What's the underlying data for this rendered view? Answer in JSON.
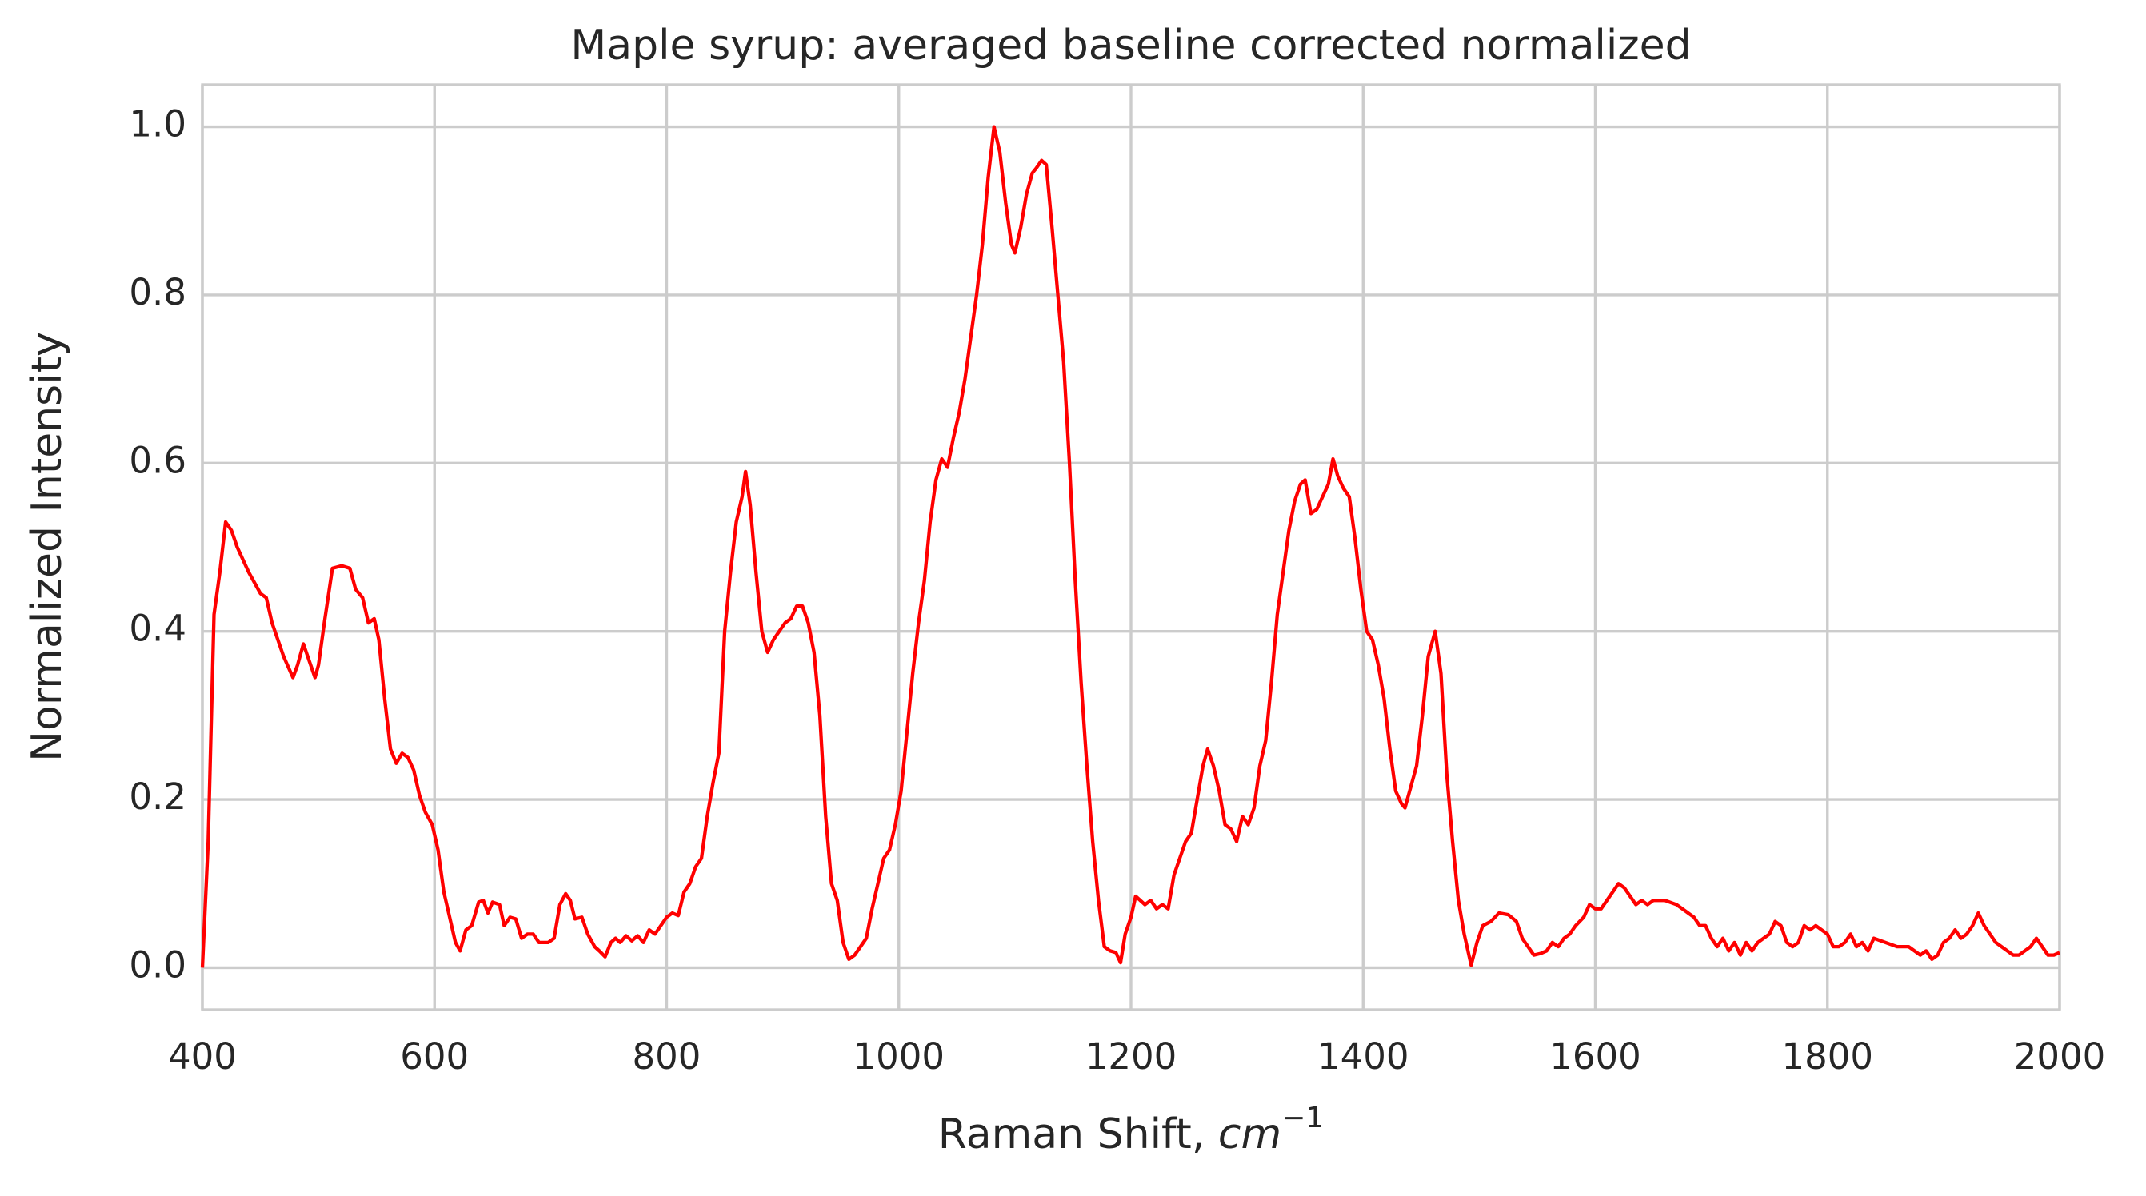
{
  "chart_data": {
    "type": "line",
    "title": "Maple syrup: averaged baseline corrected normalized",
    "xlabel": {
      "text": "Raman Shift,",
      "unit": "cm",
      "unit_exponent": "−1"
    },
    "ylabel": "Normalized Intensity",
    "color": "#ff0000",
    "grid": true,
    "xlim": [
      400,
      2000
    ],
    "ylim": [
      -0.05,
      1.05
    ],
    "xticks": [
      400,
      600,
      800,
      1000,
      1200,
      1400,
      1600,
      1800,
      2000
    ],
    "yticks": [
      {
        "value": 0,
        "label": "0.0"
      },
      0.2,
      0.4,
      0.6,
      0.8,
      {
        "value": 1,
        "label": "1.0"
      }
    ],
    "x": [
      400,
      405,
      410,
      415,
      420,
      425,
      430,
      440,
      450,
      455,
      460,
      465,
      470,
      478,
      482,
      487,
      492,
      497,
      500,
      505,
      512,
      520,
      527,
      532,
      538,
      543,
      548,
      552,
      557,
      562,
      567,
      572,
      577,
      582,
      587,
      592,
      598,
      603,
      608,
      613,
      618,
      622,
      627,
      632,
      638,
      642,
      646,
      650,
      656,
      660,
      665,
      670,
      675,
      680,
      685,
      690,
      698,
      703,
      708,
      713,
      717,
      721,
      727,
      732,
      738,
      742,
      747,
      752,
      756,
      760,
      765,
      770,
      775,
      780,
      785,
      790,
      795,
      800,
      805,
      810,
      815,
      820,
      825,
      830,
      835,
      840,
      845,
      850,
      855,
      860,
      865,
      868,
      872,
      877,
      882,
      887,
      892,
      897,
      902,
      907,
      912,
      917,
      922,
      927,
      932,
      937,
      942,
      947,
      952,
      957,
      962,
      967,
      972,
      977,
      982,
      987,
      992,
      997,
      1002,
      1007,
      1012,
      1017,
      1022,
      1027,
      1032,
      1037,
      1042,
      1047,
      1052,
      1057,
      1062,
      1067,
      1072,
      1077,
      1082,
      1087,
      1092,
      1097,
      1100,
      1105,
      1110,
      1115,
      1118,
      1123,
      1127,
      1132,
      1137,
      1142,
      1147,
      1152,
      1157,
      1162,
      1167,
      1172,
      1177,
      1182,
      1187,
      1191,
      1195,
      1200,
      1204,
      1208,
      1212,
      1217,
      1222,
      1227,
      1232,
      1237,
      1242,
      1247,
      1252,
      1257,
      1262,
      1266,
      1271,
      1276,
      1281,
      1286,
      1291,
      1296,
      1301,
      1306,
      1311,
      1316,
      1321,
      1326,
      1331,
      1336,
      1341,
      1346,
      1350,
      1355,
      1360,
      1365,
      1370,
      1374,
      1378,
      1383,
      1388,
      1393,
      1398,
      1403,
      1408,
      1413,
      1418,
      1423,
      1428,
      1433,
      1436,
      1441,
      1446,
      1451,
      1456,
      1462,
      1467,
      1472,
      1477,
      1482,
      1487,
      1493,
      1498,
      1503,
      1510,
      1517,
      1525,
      1532,
      1537,
      1542,
      1547,
      1553,
      1558,
      1563,
      1568,
      1573,
      1578,
      1583,
      1590,
      1595,
      1600,
      1605,
      1610,
      1615,
      1620,
      1625,
      1630,
      1635,
      1640,
      1645,
      1650,
      1660,
      1670,
      1680,
      1685,
      1690,
      1695,
      1700,
      1705,
      1710,
      1715,
      1720,
      1725,
      1730,
      1735,
      1740,
      1745,
      1750,
      1755,
      1760,
      1765,
      1770,
      1775,
      1780,
      1785,
      1790,
      1795,
      1800,
      1805,
      1810,
      1815,
      1820,
      1825,
      1830,
      1835,
      1840,
      1850,
      1860,
      1870,
      1880,
      1885,
      1890,
      1895,
      1900,
      1905,
      1910,
      1915,
      1920,
      1925,
      1930,
      1935,
      1940,
      1945,
      1950,
      1955,
      1960,
      1965,
      1970,
      1975,
      1980,
      1985,
      1990,
      1995,
      2000
    ],
    "values": [
      0.0,
      0.15,
      0.42,
      0.47,
      0.53,
      0.52,
      0.5,
      0.47,
      0.445,
      0.44,
      0.41,
      0.39,
      0.37,
      0.345,
      0.36,
      0.385,
      0.365,
      0.345,
      0.36,
      0.41,
      0.475,
      0.478,
      0.475,
      0.45,
      0.44,
      0.41,
      0.415,
      0.39,
      0.32,
      0.26,
      0.243,
      0.255,
      0.25,
      0.235,
      0.205,
      0.185,
      0.17,
      0.14,
      0.09,
      0.06,
      0.03,
      0.02,
      0.045,
      0.05,
      0.078,
      0.08,
      0.065,
      0.078,
      0.075,
      0.05,
      0.06,
      0.058,
      0.035,
      0.04,
      0.04,
      0.03,
      0.03,
      0.035,
      0.075,
      0.088,
      0.08,
      0.058,
      0.06,
      0.04,
      0.025,
      0.02,
      0.013,
      0.03,
      0.035,
      0.03,
      0.038,
      0.032,
      0.038,
      0.03,
      0.045,
      0.04,
      0.05,
      0.06,
      0.065,
      0.062,
      0.09,
      0.1,
      0.12,
      0.13,
      0.18,
      0.22,
      0.255,
      0.4,
      0.47,
      0.53,
      0.56,
      0.59,
      0.55,
      0.47,
      0.4,
      0.375,
      0.39,
      0.4,
      0.41,
      0.415,
      0.43,
      0.43,
      0.41,
      0.375,
      0.3,
      0.18,
      0.1,
      0.08,
      0.03,
      0.01,
      0.015,
      0.025,
      0.035,
      0.07,
      0.1,
      0.13,
      0.14,
      0.17,
      0.21,
      0.28,
      0.35,
      0.41,
      0.46,
      0.53,
      0.58,
      0.605,
      0.595,
      0.63,
      0.66,
      0.7,
      0.75,
      0.8,
      0.86,
      0.94,
      1.0,
      0.97,
      0.91,
      0.86,
      0.85,
      0.88,
      0.92,
      0.945,
      0.95,
      0.96,
      0.955,
      0.88,
      0.8,
      0.72,
      0.6,
      0.46,
      0.34,
      0.24,
      0.15,
      0.08,
      0.025,
      0.02,
      0.018,
      0.006,
      0.04,
      0.06,
      0.085,
      0.08,
      0.075,
      0.08,
      0.07,
      0.075,
      0.07,
      0.11,
      0.13,
      0.15,
      0.16,
      0.2,
      0.24,
      0.26,
      0.24,
      0.21,
      0.17,
      0.165,
      0.15,
      0.18,
      0.17,
      0.19,
      0.24,
      0.27,
      0.34,
      0.42,
      0.47,
      0.52,
      0.555,
      0.575,
      0.58,
      0.54,
      0.545,
      0.56,
      0.575,
      0.605,
      0.585,
      0.57,
      0.56,
      0.51,
      0.45,
      0.4,
      0.39,
      0.36,
      0.32,
      0.26,
      0.21,
      0.195,
      0.19,
      0.215,
      0.24,
      0.3,
      0.37,
      0.4,
      0.35,
      0.23,
      0.15,
      0.08,
      0.04,
      0.003,
      0.03,
      0.05,
      0.055,
      0.065,
      0.063,
      0.055,
      0.035,
      0.025,
      0.015,
      0.017,
      0.02,
      0.03,
      0.025,
      0.035,
      0.04,
      0.05,
      0.06,
      0.075,
      0.07,
      0.07,
      0.08,
      0.09,
      0.1,
      0.095,
      0.085,
      0.075,
      0.08,
      0.075,
      0.08,
      0.08,
      0.075,
      0.065,
      0.06,
      0.05,
      0.05,
      0.035,
      0.025,
      0.035,
      0.02,
      0.03,
      0.015,
      0.03,
      0.02,
      0.03,
      0.035,
      0.04,
      0.055,
      0.05,
      0.03,
      0.025,
      0.03,
      0.05,
      0.045,
      0.05,
      0.045,
      0.04,
      0.025,
      0.025,
      0.03,
      0.04,
      0.025,
      0.03,
      0.02,
      0.035,
      0.03,
      0.025,
      0.025,
      0.015,
      0.02,
      0.01,
      0.015,
      0.03,
      0.035,
      0.045,
      0.035,
      0.04,
      0.05,
      0.065,
      0.05,
      0.04,
      0.03,
      0.025,
      0.02,
      0.015,
      0.015,
      0.02,
      0.025,
      0.035,
      0.025,
      0.015,
      0.015,
      0.018
    ]
  }
}
